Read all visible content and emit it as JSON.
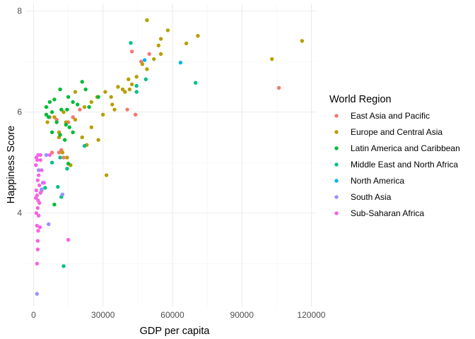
{
  "chart_data": {
    "type": "scatter",
    "xlabel": "GDP per capita",
    "ylabel": "Happiness Score",
    "xlim": [
      -3500,
      122000
    ],
    "ylim": [
      2.15,
      8.15
    ],
    "x_ticks": [
      0,
      30000,
      60000,
      90000,
      120000
    ],
    "x_tick_labels": [
      "0",
      "30000",
      "60000",
      "90000",
      "120000"
    ],
    "y_ticks": [
      4,
      6,
      8
    ],
    "y_tick_labels": [
      "4",
      "6",
      "8"
    ],
    "grid": true,
    "legend": {
      "title": "World Region",
      "position": "right"
    },
    "series": [
      {
        "name": "East Asia and Pacific",
        "color": "#F8766D",
        "points": [
          [
            42500,
            7.2
          ],
          [
            46500,
            7.0
          ],
          [
            50000,
            7.15
          ],
          [
            106000,
            6.48
          ],
          [
            40500,
            6.05
          ],
          [
            44000,
            5.95
          ],
          [
            20000,
            6.05
          ],
          [
            7000,
            5.9
          ],
          [
            10000,
            5.85
          ],
          [
            15000,
            5.8
          ],
          [
            17000,
            5.9
          ],
          [
            12000,
            5.25
          ],
          [
            13000,
            5.1
          ],
          [
            8000,
            5.2
          ],
          [
            3500,
            4.45
          ],
          [
            11000,
            5.2
          ]
        ]
      },
      {
        "name": "Europe and Central Asia",
        "color": "#B79F00",
        "points": [
          [
            49000,
            7.82
          ],
          [
            58000,
            7.62
          ],
          [
            71000,
            7.51
          ],
          [
            116000,
            7.41
          ],
          [
            55000,
            7.45
          ],
          [
            66000,
            7.36
          ],
          [
            54000,
            7.32
          ],
          [
            103000,
            7.05
          ],
          [
            55000,
            7.15
          ],
          [
            52000,
            7.05
          ],
          [
            47000,
            6.95
          ],
          [
            49000,
            6.85
          ],
          [
            44500,
            6.7
          ],
          [
            41000,
            6.65
          ],
          [
            42500,
            6.55
          ],
          [
            36500,
            6.5
          ],
          [
            38500,
            6.45
          ],
          [
            41500,
            6.45
          ],
          [
            39500,
            6.4
          ],
          [
            33500,
            6.3
          ],
          [
            34000,
            6.15
          ],
          [
            27500,
            6.3
          ],
          [
            31000,
            6.4
          ],
          [
            35000,
            6.05
          ],
          [
            30000,
            5.95
          ],
          [
            25000,
            6.2
          ],
          [
            22000,
            6.1
          ],
          [
            25000,
            5.7
          ],
          [
            18000,
            6.4
          ],
          [
            21000,
            5.5
          ],
          [
            18000,
            5.85
          ],
          [
            14000,
            5.8
          ],
          [
            13000,
            6.0
          ],
          [
            11000,
            5.6
          ],
          [
            9000,
            5.9
          ],
          [
            12500,
            5.2
          ],
          [
            14500,
            5.1
          ],
          [
            16000,
            4.95
          ],
          [
            31500,
            4.75
          ],
          [
            28000,
            5.45
          ],
          [
            23000,
            5.35
          ],
          [
            6000,
            5.8
          ],
          [
            11000,
            5.5
          ]
        ]
      },
      {
        "name": "Latin America and Caribbean",
        "color": "#00BA38",
        "points": [
          [
            21000,
            6.6
          ],
          [
            11500,
            6.45
          ],
          [
            15000,
            6.3
          ],
          [
            9000,
            6.25
          ],
          [
            7000,
            6.2
          ],
          [
            5500,
            6.1
          ],
          [
            22500,
            6.45
          ],
          [
            19000,
            6.15
          ],
          [
            17000,
            6.2
          ],
          [
            14500,
            6.05
          ],
          [
            12000,
            6.05
          ],
          [
            8000,
            6.0
          ],
          [
            6500,
            5.9
          ],
          [
            10000,
            5.8
          ],
          [
            14000,
            5.75
          ],
          [
            15500,
            5.7
          ],
          [
            17000,
            5.6
          ],
          [
            11500,
            5.55
          ],
          [
            8000,
            5.6
          ],
          [
            13500,
            5.45
          ],
          [
            5500,
            5.95
          ],
          [
            15000,
            4.98
          ],
          [
            9000,
            4.17
          ],
          [
            28000,
            6.3
          ],
          [
            24000,
            6.1
          ]
        ]
      },
      {
        "name": "Middle East and North Africa",
        "color": "#00C08B",
        "points": [
          [
            42000,
            7.37
          ],
          [
            44500,
            6.52
          ],
          [
            44500,
            6.4
          ],
          [
            48500,
            6.65
          ],
          [
            70000,
            6.58
          ],
          [
            22000,
            5.33
          ],
          [
            14500,
            4.88
          ],
          [
            12000,
            4.32
          ],
          [
            10500,
            4.52
          ],
          [
            13000,
            2.95
          ],
          [
            8000,
            5.0
          ],
          [
            11500,
            5.1
          ],
          [
            5000,
            4.5
          ]
        ]
      },
      {
        "name": "North America",
        "color": "#00B4F0",
        "points": [
          [
            48000,
            7.03
          ],
          [
            63500,
            6.98
          ]
        ]
      },
      {
        "name": "South Asia",
        "color": "#9590FF",
        "points": [
          [
            12500,
            4.37
          ],
          [
            6500,
            3.78
          ],
          [
            5500,
            5.15
          ],
          [
            2200,
            4.85
          ],
          [
            4000,
            4.6
          ],
          [
            1500,
            2.4
          ],
          [
            3500,
            4.47
          ]
        ]
      },
      {
        "name": "Sub-Saharan Africa",
        "color": "#F564E3",
        "points": [
          [
            1200,
            5.1
          ],
          [
            2000,
            5.15
          ],
          [
            1600,
            5.05
          ],
          [
            1000,
            4.95
          ],
          [
            3000,
            5.05
          ],
          [
            3500,
            4.85
          ],
          [
            2200,
            4.75
          ],
          [
            1800,
            4.65
          ],
          [
            2500,
            4.55
          ],
          [
            1200,
            4.45
          ],
          [
            3000,
            4.4
          ],
          [
            1500,
            4.35
          ],
          [
            2000,
            4.25
          ],
          [
            1000,
            4.3
          ],
          [
            2500,
            4.2
          ],
          [
            1800,
            4.1
          ],
          [
            1200,
            4.0
          ],
          [
            2200,
            3.95
          ],
          [
            1500,
            3.75
          ],
          [
            2800,
            3.72
          ],
          [
            2000,
            3.65
          ],
          [
            1800,
            3.45
          ],
          [
            1800,
            3.28
          ],
          [
            1500,
            3.0
          ],
          [
            15000,
            3.47
          ],
          [
            7000,
            5.15
          ],
          [
            4500,
            4.6
          ],
          [
            3000,
            5.15
          ]
        ]
      }
    ]
  }
}
